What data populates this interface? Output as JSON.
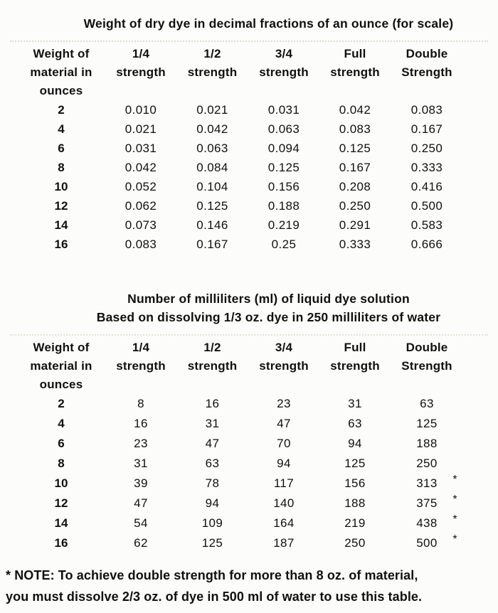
{
  "document": {
    "background_color": "#fcfcfa",
    "text_color": "#101010",
    "kind": "scanned reference page with two dye measurement tables"
  },
  "tables": [
    {
      "title": "Weight of dry dye in decimal fractions of an ounce (for scale)",
      "headers": [
        "Weight of\nmaterial in\nounces",
        "1/4\nstrength",
        "1/2\nstrength",
        "3/4\nstrength",
        "Full\nstrength",
        "Double\nStrength"
      ],
      "star_marker": "*",
      "rows": [
        {
          "cells": [
            "2",
            "0.010",
            "0.021",
            "0.031",
            "0.042",
            "0.083"
          ],
          "starred": false
        },
        {
          "cells": [
            "4",
            "0.021",
            "0.042",
            "0.063",
            "0.083",
            "0.167"
          ],
          "starred": false
        },
        {
          "cells": [
            "6",
            "0.031",
            "0.063",
            "0.094",
            "0.125",
            "0.250"
          ],
          "starred": false
        },
        {
          "cells": [
            "8",
            "0.042",
            "0.084",
            "0.125",
            "0.167",
            "0.333"
          ],
          "starred": false
        },
        {
          "cells": [
            "10",
            "0.052",
            "0.104",
            "0.156",
            "0.208",
            "0.416"
          ],
          "starred": false
        },
        {
          "cells": [
            "12",
            "0.062",
            "0.125",
            "0.188",
            "0.250",
            "0.500"
          ],
          "starred": false
        },
        {
          "cells": [
            "14",
            "0.073",
            "0.146",
            "0.219",
            "0.291",
            "0.583"
          ],
          "starred": false
        },
        {
          "cells": [
            "16",
            "0.083",
            "0.167",
            "0.25",
            "0.333",
            "0.666"
          ],
          "starred": false
        }
      ]
    },
    {
      "title": "Number of milliliters (ml) of liquid dye solution",
      "subtitle": "Based on dissolving 1/3 oz. dye in 250 milliliters of water",
      "headers": [
        "Weight of\nmaterial in\nounces",
        "1/4\nstrength",
        "1/2\nstrength",
        "3/4\nstrength",
        "Full\nstrength",
        "Double\nStrength"
      ],
      "star_marker": "*",
      "rows": [
        {
          "cells": [
            "2",
            "8",
            "16",
            "23",
            "31",
            "63"
          ],
          "starred": false
        },
        {
          "cells": [
            "4",
            "16",
            "31",
            "47",
            "63",
            "125"
          ],
          "starred": false
        },
        {
          "cells": [
            "6",
            "23",
            "47",
            "70",
            "94",
            "188"
          ],
          "starred": false
        },
        {
          "cells": [
            "8",
            "31",
            "63",
            "94",
            "125",
            "250"
          ],
          "starred": false
        },
        {
          "cells": [
            "10",
            "39",
            "78",
            "117",
            "156",
            "313"
          ],
          "starred": true
        },
        {
          "cells": [
            "12",
            "47",
            "94",
            "140",
            "188",
            "375"
          ],
          "starred": true
        },
        {
          "cells": [
            "14",
            "54",
            "109",
            "164",
            "219",
            "438"
          ],
          "starred": true
        },
        {
          "cells": [
            "16",
            "62",
            "125",
            "187",
            "250",
            "500"
          ],
          "starred": true
        }
      ]
    }
  ],
  "footnote": "* NOTE: To achieve double strength for more than 8 oz. of material,\nyou must dissolve 2/3 oz. of dye in 500 ml of water to use this table."
}
